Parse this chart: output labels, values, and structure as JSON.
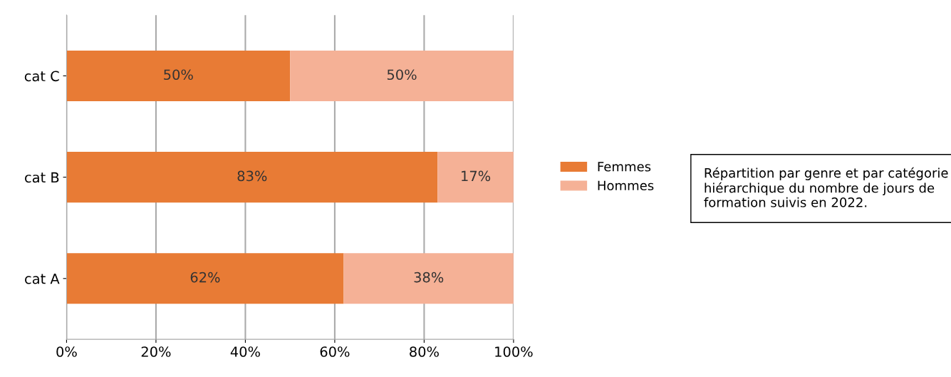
{
  "chart_data": {
    "type": "bar",
    "orientation": "horizontal",
    "stacked": true,
    "categories": [
      "cat C",
      "cat B",
      "cat A"
    ],
    "series": [
      {
        "name": "Femmes",
        "color": "#e87b35",
        "values": [
          50,
          83,
          62
        ],
        "value_labels": [
          "50%",
          "83%",
          "62%"
        ]
      },
      {
        "name": "Hommes",
        "color": "#f5b196",
        "values": [
          50,
          17,
          38
        ],
        "value_labels": [
          "50%",
          "17%",
          "38%"
        ]
      }
    ],
    "xlim": [
      0,
      100
    ],
    "xticks": [
      {
        "value": 0,
        "label": "0%"
      },
      {
        "value": 20,
        "label": "20%"
      },
      {
        "value": 40,
        "label": "40%"
      },
      {
        "value": 60,
        "label": "60%"
      },
      {
        "value": 80,
        "label": "80%"
      },
      {
        "value": 100,
        "label": "100%"
      }
    ],
    "grid": "x",
    "legend": "right",
    "annotations": [
      "Répartition par genre et par catégorie hiérarchique du nombre de jours de formation suivis en 2022."
    ]
  }
}
